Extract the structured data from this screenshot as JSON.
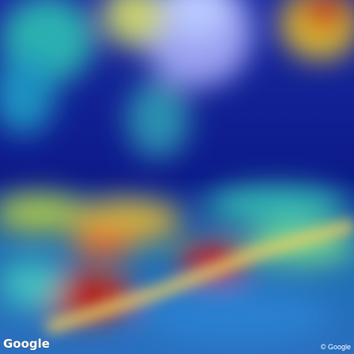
{
  "logo": "Google",
  "copyright": "© Google"
}
